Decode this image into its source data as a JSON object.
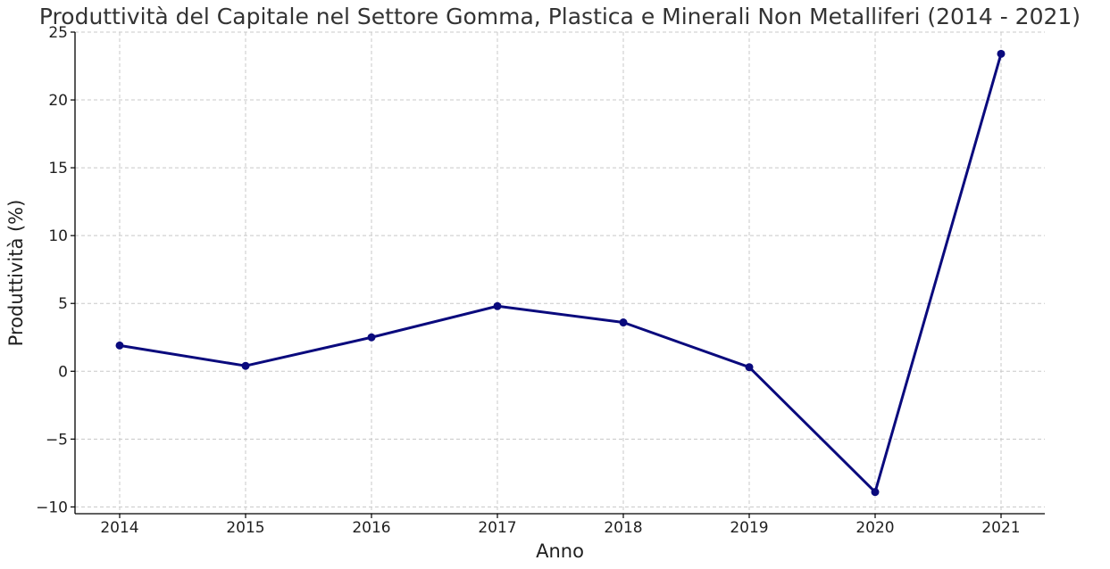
{
  "chart_data": {
    "type": "line",
    "title": "Produttività del Capitale nel Settore Gomma, Plastica e Minerali Non Metalliferi (2014 - 2021)",
    "xlabel": "Anno",
    "ylabel": "Produttività (%)",
    "categories": [
      "2014",
      "2015",
      "2016",
      "2017",
      "2018",
      "2019",
      "2020",
      "2021"
    ],
    "series": [
      {
        "values": [
          1.9,
          0.4,
          2.5,
          4.8,
          3.6,
          0.3,
          -8.9,
          23.4
        ]
      }
    ],
    "ylim": [
      -10.5,
      25
    ],
    "yticks": [
      -10,
      -5,
      0,
      5,
      10,
      15,
      20,
      25
    ],
    "ytick_labels": [
      "−10",
      "−5",
      "0",
      "5",
      "10",
      "15",
      "20",
      "25"
    ],
    "grid": true,
    "marker": "circle",
    "colors": {
      "series": "#0a0a7d",
      "grid": "#c8c8c8",
      "axis": "#000000"
    }
  }
}
